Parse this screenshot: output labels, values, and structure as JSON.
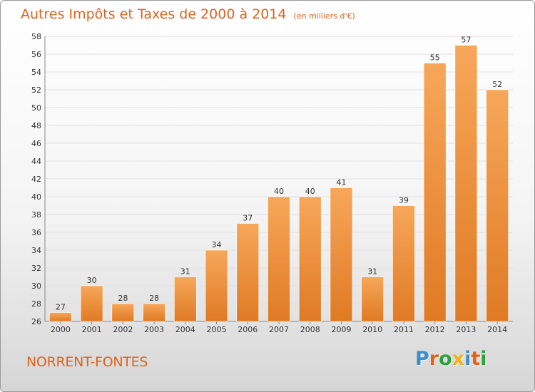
{
  "header": {
    "title": "Autres Impôts et Taxes de 2000 à 2014",
    "subtitle": "(en milliers d'€)"
  },
  "footer": {
    "commune": "NORRENT-FONTES",
    "logo_letters": [
      "P",
      "r",
      "o",
      "x",
      "i",
      "t",
      "i"
    ],
    "logo_colors": [
      "#3a8ec9",
      "#e2621b",
      "#2aa33a",
      "#f2b01a",
      "#3a8ec9",
      "#e2621b",
      "#2aa33a"
    ]
  },
  "colors": {
    "bar_light": "#f7a75a",
    "bar_dark": "#e07a24",
    "accent": "#e2621b",
    "grid": "#e0e0e0"
  },
  "chart_data": {
    "type": "bar",
    "categories": [
      "2000",
      "2001",
      "2002",
      "2003",
      "2004",
      "2005",
      "2006",
      "2007",
      "2008",
      "2009",
      "2010",
      "2011",
      "2012",
      "2013",
      "2014"
    ],
    "values": [
      27,
      30,
      28,
      28,
      31,
      34,
      37,
      40,
      40,
      41,
      31,
      39,
      55,
      57,
      52
    ],
    "ylim": [
      26,
      58
    ],
    "yticks": [
      26,
      28,
      30,
      32,
      34,
      36,
      38,
      40,
      42,
      44,
      46,
      48,
      50,
      52,
      54,
      56,
      58
    ],
    "grid": true,
    "data_labels": true
  }
}
